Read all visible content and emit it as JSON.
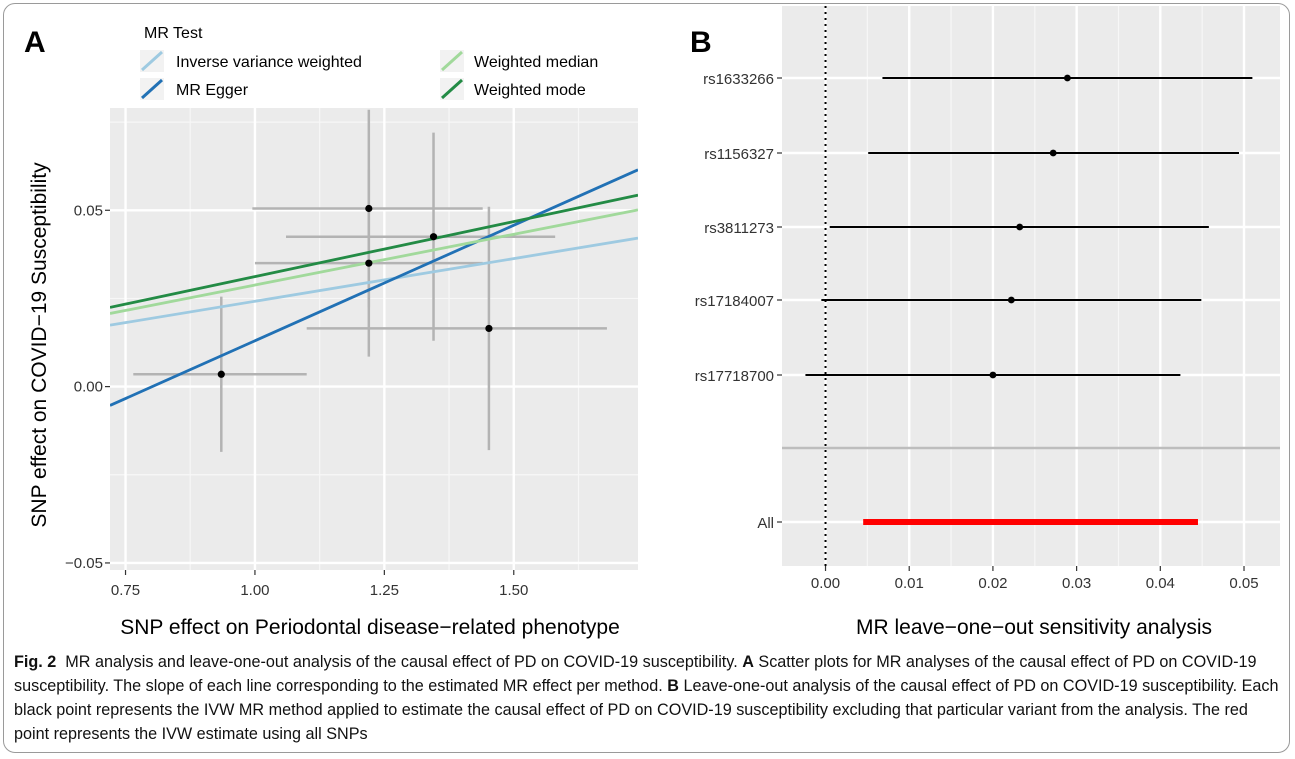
{
  "figure": {
    "panel_a_label": "A",
    "panel_b_label": "B",
    "caption_label": "Fig. 2",
    "caption_text": "MR analysis and leave-one-out analysis of the causal effect of PD on COVID-19 susceptibility. ",
    "caption_a_label": "A",
    "caption_a_text": " Scatter plots for MR analyses of the causal effect of PD on COVID-19 susceptibility. The slope of each line corresponding to the estimated MR effect per method. ",
    "caption_b_label": "B",
    "caption_b_text": " Leave-one-out analysis of the causal effect of PD on COVID-19 susceptibility. Each black point represents the IVW MR method applied to estimate the causal effect of PD on COVID-19 susceptibility excluding that particular variant from the analysis. The red point represents the IVW estimate using all SNPs"
  },
  "chart_data": [
    {
      "type": "scatter",
      "xlabel": "SNP effect on Periodontal disease−related phenotype",
      "ylabel": "SNP effect on COVID−19 Susceptibility",
      "xlim": [
        0.72,
        1.74
      ],
      "ylim": [
        -0.052,
        0.079
      ],
      "x_ticks": [
        0.75,
        1.0,
        1.25,
        1.5
      ],
      "x_tick_labels": [
        "0.75",
        "1.00",
        "1.25",
        "1.50"
      ],
      "y_ticks": [
        -0.05,
        0.0,
        0.05
      ],
      "y_tick_labels": [
        "−0.05",
        "0.00",
        "0.05"
      ],
      "grid": true,
      "legend_title": "MR Test",
      "legend_position": "top",
      "points": [
        {
          "x": 0.935,
          "y": 0.0035,
          "x_low": 0.765,
          "x_high": 1.1,
          "y_low": -0.0185,
          "y_high": 0.0255
        },
        {
          "x": 1.22,
          "y": 0.0505,
          "x_low": 0.995,
          "x_high": 1.44,
          "y_low": 0.0225,
          "y_high": 0.0785
        },
        {
          "x": 1.22,
          "y": 0.035,
          "x_low": 1.0,
          "x_high": 1.44,
          "y_low": 0.0085,
          "y_high": 0.0615
        },
        {
          "x": 1.345,
          "y": 0.0425,
          "x_low": 1.06,
          "x_high": 1.58,
          "y_low": 0.013,
          "y_high": 0.072
        },
        {
          "x": 1.452,
          "y": 0.0165,
          "x_low": 1.1,
          "x_high": 1.68,
          "y_low": -0.018,
          "y_high": 0.051
        }
      ],
      "series": [
        {
          "name": "Inverse variance weighted",
          "color": "#9ecae1",
          "intercept": 0.0,
          "slope": 0.0242
        },
        {
          "name": "MR Egger",
          "color": "#2171b5",
          "intercept": -0.0525,
          "slope": 0.0655
        },
        {
          "name": "Weighted median",
          "color": "#a1d99b",
          "intercept": 0.0,
          "slope": 0.0288
        },
        {
          "name": "Weighted mode",
          "color": "#238b45",
          "intercept": 0.0,
          "slope": 0.0312
        }
      ]
    },
    {
      "type": "forest",
      "xlabel": "MR leave−one−out sensitivity analysis",
      "xlim": [
        -0.0052,
        0.0543
      ],
      "x_ticks": [
        0.0,
        0.01,
        0.02,
        0.03,
        0.04,
        0.05
      ],
      "x_tick_labels": [
        "0.00",
        "0.01",
        "0.02",
        "0.03",
        "0.04",
        "0.05"
      ],
      "grid": true,
      "reference_line": 0,
      "rows": [
        {
          "label": "rs1633266",
          "estimate": 0.0289,
          "low": 0.0068,
          "high": 0.051,
          "color": "#000000"
        },
        {
          "label": "rs1156327",
          "estimate": 0.0272,
          "low": 0.0051,
          "high": 0.0494,
          "color": "#000000"
        },
        {
          "label": "rs3811273",
          "estimate": 0.0232,
          "low": 0.0005,
          "high": 0.0458,
          "color": "#000000"
        },
        {
          "label": "rs17184007",
          "estimate": 0.0222,
          "low": -0.0005,
          "high": 0.0449,
          "color": "#000000"
        },
        {
          "label": "rs17718700",
          "estimate": 0.02,
          "low": -0.0024,
          "high": 0.0424,
          "color": "#000000"
        },
        {
          "label": "All",
          "estimate": 0.0245,
          "low": 0.0045,
          "high": 0.0445,
          "color": "#ff0000"
        }
      ]
    }
  ]
}
